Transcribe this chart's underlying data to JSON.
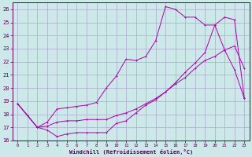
{
  "xlabel": "Windchill (Refroidissement éolien,°C)",
  "bg_color": "#cce8e8",
  "grid_color": "#aaaacc",
  "line_color": "#aa00aa",
  "xlim": [
    -0.5,
    23.5
  ],
  "ylim": [
    16,
    26.5
  ],
  "xticks": [
    0,
    1,
    2,
    3,
    4,
    5,
    6,
    7,
    8,
    9,
    10,
    11,
    12,
    13,
    14,
    15,
    16,
    17,
    18,
    19,
    20,
    21,
    22,
    23
  ],
  "yticks": [
    16,
    17,
    18,
    19,
    20,
    21,
    22,
    23,
    24,
    25,
    26
  ],
  "line1_x": [
    0,
    1,
    2,
    3,
    4,
    5,
    6,
    7,
    8,
    9,
    10,
    11,
    12,
    13,
    14,
    15,
    16,
    17,
    18,
    19,
    20,
    21,
    22,
    23
  ],
  "line1_y": [
    18.8,
    17.9,
    17.0,
    16.8,
    16.3,
    16.5,
    16.6,
    16.6,
    16.6,
    16.6,
    17.3,
    17.5,
    18.1,
    18.7,
    19.1,
    19.7,
    20.3,
    20.8,
    21.5,
    22.1,
    22.4,
    22.9,
    23.2,
    21.5
  ],
  "line2_x": [
    0,
    1,
    2,
    3,
    4,
    5,
    6,
    7,
    8,
    9,
    10,
    11,
    12,
    13,
    14,
    15,
    16,
    17,
    18,
    19,
    20,
    21,
    22,
    23
  ],
  "line2_y": [
    18.8,
    17.9,
    17.0,
    17.4,
    18.4,
    18.5,
    18.6,
    18.7,
    18.9,
    20.0,
    20.9,
    22.2,
    22.1,
    22.4,
    23.6,
    26.2,
    26.0,
    25.4,
    25.4,
    24.8,
    24.8,
    22.9,
    21.4,
    19.2
  ],
  "line3_x": [
    0,
    1,
    2,
    3,
    4,
    5,
    6,
    7,
    8,
    9,
    10,
    11,
    12,
    13,
    14,
    15,
    16,
    17,
    18,
    19,
    20,
    21,
    22,
    23
  ],
  "line3_y": [
    18.8,
    17.9,
    17.0,
    17.1,
    17.4,
    17.5,
    17.5,
    17.6,
    17.6,
    17.6,
    17.9,
    18.1,
    18.4,
    18.8,
    19.2,
    19.7,
    20.4,
    21.2,
    21.9,
    22.7,
    24.8,
    25.4,
    25.2,
    19.2
  ]
}
